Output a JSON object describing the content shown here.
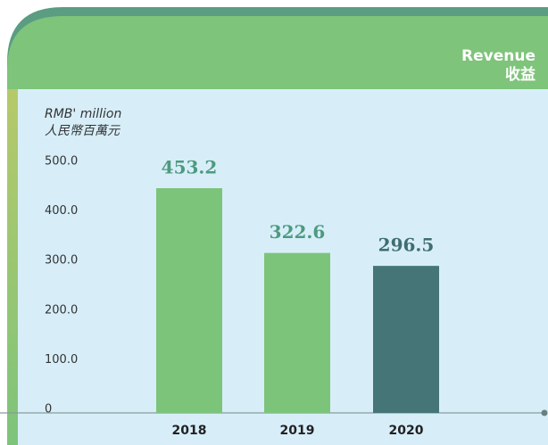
{
  "chart_data": {
    "type": "bar",
    "title": "Revenue",
    "subtitle": "收益",
    "ylabel": "RMB' million",
    "ylabel_secondary": "人民幣百萬元",
    "categories": [
      "2018",
      "2019",
      "2020"
    ],
    "values": [
      453.2,
      322.6,
      296.5
    ],
    "colors": [
      "#7dc47b",
      "#7dc47b",
      "#467577"
    ],
    "label_colors": [
      "#4e9a7f",
      "#4e9a7f",
      "#3f6e70"
    ],
    "ylim": [
      0,
      500
    ],
    "yticks": [
      0,
      {
        "value": 100,
        "label": "100.0"
      },
      {
        "value": 200,
        "label": "200.0"
      },
      {
        "value": 300,
        "label": "300.0"
      },
      {
        "value": 400,
        "label": "400.0"
      },
      {
        "value": 500,
        "label": "500.0"
      }
    ]
  }
}
